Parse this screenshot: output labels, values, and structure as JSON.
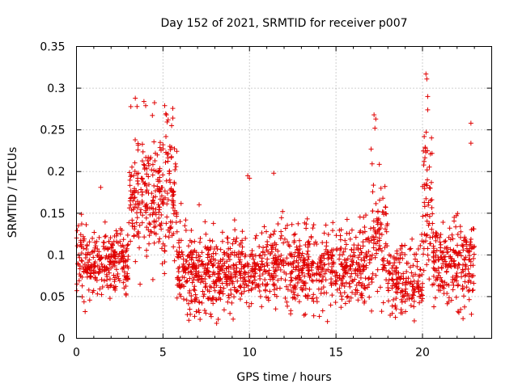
{
  "chart_data": {
    "type": "scatter",
    "title": "Day 152 of 2021, SRMTID for receiver p007",
    "xlabel": "GPS time / hours",
    "ylabel": "SRMTID / TECUs",
    "xlim": [
      0,
      24
    ],
    "ylim": [
      0,
      0.35
    ],
    "x_ticks": [
      0,
      5,
      10,
      15,
      20
    ],
    "x_tick_labels": [
      "0",
      "5",
      "10",
      "15",
      "20"
    ],
    "y_ticks": [
      0,
      0.05,
      0.1,
      0.15,
      0.2,
      0.25,
      0.3,
      0.35
    ],
    "y_tick_labels": [
      "0",
      "0.05",
      "0.1",
      "0.15",
      "0.2",
      "0.25",
      "0.3",
      "0.35"
    ],
    "grid": true,
    "marker": "plus",
    "color": "#e00000",
    "series": [
      {
        "name": "SRMTID",
        "profile_description": "dense scatter; values mostly between 0.03 and 0.15 TECU, with enhanced bursts",
        "segments": [
          {
            "x_range": [
              0.0,
              3.0
            ],
            "center": 0.09,
            "spread": 0.025,
            "count": 280
          },
          {
            "x_range": [
              3.0,
              5.8
            ],
            "center": 0.17,
            "spread": 0.05,
            "count": 280
          },
          {
            "x_range": [
              5.8,
              9.0
            ],
            "center": 0.08,
            "spread": 0.03,
            "count": 330
          },
          {
            "x_range": [
              9.0,
              17.0
            ],
            "center": 0.085,
            "spread": 0.03,
            "count": 700
          },
          {
            "x_range": [
              17.0,
              18.0
            ],
            "center": 0.12,
            "spread": 0.045,
            "count": 90
          },
          {
            "x_range": [
              18.0,
              20.0
            ],
            "center": 0.07,
            "spread": 0.025,
            "count": 170
          },
          {
            "x_range": [
              20.0,
              20.6
            ],
            "center": 0.16,
            "spread": 0.06,
            "count": 60
          },
          {
            "x_range": [
              20.6,
              23.0
            ],
            "center": 0.09,
            "spread": 0.03,
            "count": 230
          }
        ],
        "notable_points": [
          {
            "x": 3.4,
            "y": 0.288
          },
          {
            "x": 3.5,
            "y": 0.278
          },
          {
            "x": 3.9,
            "y": 0.284
          },
          {
            "x": 4.0,
            "y": 0.279
          },
          {
            "x": 5.1,
            "y": 0.279
          },
          {
            "x": 5.2,
            "y": 0.268
          },
          {
            "x": 5.3,
            "y": 0.262
          },
          {
            "x": 5.5,
            "y": 0.255
          },
          {
            "x": 1.4,
            "y": 0.181
          },
          {
            "x": 9.9,
            "y": 0.195
          },
          {
            "x": 10.0,
            "y": 0.192
          },
          {
            "x": 11.4,
            "y": 0.198
          },
          {
            "x": 17.2,
            "y": 0.268
          },
          {
            "x": 17.3,
            "y": 0.263
          },
          {
            "x": 17.25,
            "y": 0.252
          },
          {
            "x": 20.2,
            "y": 0.317
          },
          {
            "x": 20.25,
            "y": 0.311
          },
          {
            "x": 20.3,
            "y": 0.29
          },
          {
            "x": 20.3,
            "y": 0.274
          },
          {
            "x": 20.1,
            "y": 0.242
          },
          {
            "x": 22.8,
            "y": 0.258
          },
          {
            "x": 22.8,
            "y": 0.234
          },
          {
            "x": 8.1,
            "y": 0.018
          },
          {
            "x": 0.5,
            "y": 0.032
          }
        ]
      }
    ]
  }
}
